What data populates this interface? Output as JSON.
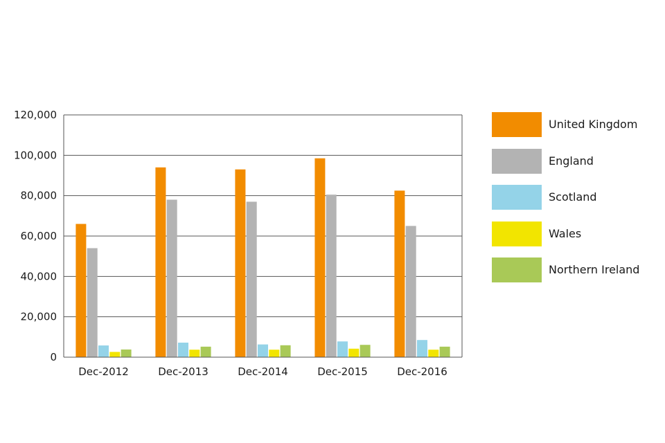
{
  "chart_data": {
    "type": "bar",
    "title": "",
    "xlabel": "",
    "ylabel": "",
    "categories": [
      "Dec-2012",
      "Dec-2013",
      "Dec-2014",
      "Dec-2015",
      "Dec-2016"
    ],
    "ylim": [
      0,
      120000
    ],
    "yticks": [
      0,
      20000,
      40000,
      60000,
      80000,
      100000,
      120000
    ],
    "ytick_labels": [
      "0",
      "20,000",
      "40,000",
      "60,000",
      "80,000",
      "100,000",
      "120,000"
    ],
    "grid": true,
    "legend_position": "right",
    "series": [
      {
        "name": "United Kingdom",
        "color": "#f28c00",
        "values": [
          66000,
          94000,
          93000,
          98500,
          82500
        ]
      },
      {
        "name": "England",
        "color": "#b3b3b3",
        "values": [
          54000,
          78000,
          77000,
          80500,
          65000
        ]
      },
      {
        "name": "Scotland",
        "color": "#94d3e8",
        "values": [
          5800,
          7200,
          6300,
          7800,
          8500
        ]
      },
      {
        "name": "Wales",
        "color": "#f2e500",
        "values": [
          2600,
          3700,
          3700,
          4200,
          3700
        ]
      },
      {
        "name": "Northern Ireland",
        "color": "#a9c957",
        "values": [
          3800,
          5200,
          5900,
          6100,
          5200
        ]
      }
    ]
  }
}
